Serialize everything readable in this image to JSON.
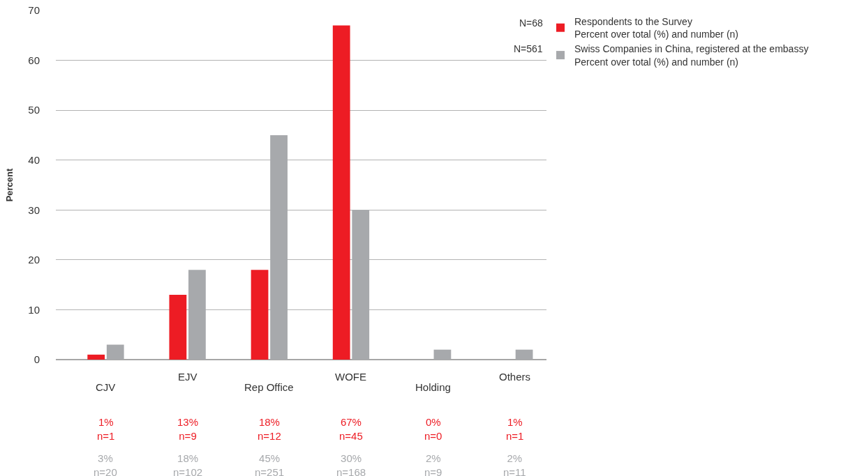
{
  "chart_data": {
    "type": "bar",
    "ylabel": "Percent",
    "categories": [
      "CJV",
      "EJV",
      "Rep Office",
      "WOFE",
      "Holding",
      "Others"
    ],
    "series": [
      {
        "name": "Respondents to the Survey\nPercent over total (%) and number (n)",
        "color": "#ed1c24",
        "values": [
          1,
          13,
          18,
          67,
          0,
          null
        ],
        "value_labels": [
          "1%\nn=1",
          "13%\nn=9",
          "18%\nn=12",
          "67%\nn=45",
          "0%\nn=0",
          "1%\nn=1"
        ]
      },
      {
        "name": "Swiss Companies in China, registered at the embassy\nPercent over total (%) and number (n)",
        "color": "#a7a9ac",
        "values": [
          3,
          18,
          45,
          30,
          2,
          2
        ],
        "value_labels": [
          "3%\nn=20",
          "18%\nn=102",
          "45%\nn=251",
          "30%\nn=168",
          "2%\nn=9",
          "2%\nn=11"
        ]
      }
    ],
    "ylim": [
      0,
      70
    ],
    "yticks": [
      0,
      10,
      20,
      30,
      40,
      50,
      60,
      70
    ],
    "grid": "y",
    "legend": "top right",
    "annotations": [
      "N=68",
      "N=561"
    ]
  }
}
